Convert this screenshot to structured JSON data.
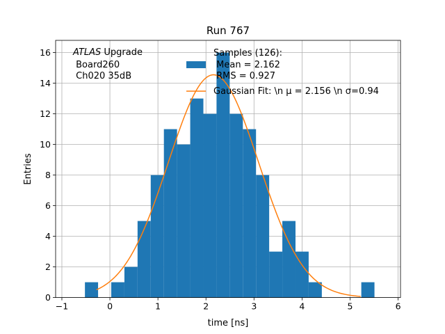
{
  "chart_data": {
    "type": "bar",
    "title": "Run 767",
    "xlabel": "time [ns]",
    "ylabel": "Entries",
    "xlim": [
      -1.13,
      6.05
    ],
    "ylim": [
      0,
      16.8
    ],
    "grid": true,
    "xticks": [
      -1,
      0,
      1,
      2,
      3,
      4,
      5,
      6
    ],
    "xtick_labels": [
      "−1",
      "0",
      "1",
      "2",
      "3",
      "4",
      "5",
      "6"
    ],
    "yticks": [
      0,
      2,
      4,
      6,
      8,
      10,
      12,
      14,
      16
    ],
    "ytick_labels": [
      "0",
      "2",
      "4",
      "6",
      "8",
      "10",
      "12",
      "14",
      "16"
    ],
    "bin_width": 0.274,
    "bins": [
      {
        "x0": -0.52,
        "value": 1
      },
      {
        "x0": -0.246,
        "value": 0
      },
      {
        "x0": 0.028,
        "value": 1
      },
      {
        "x0": 0.302,
        "value": 2
      },
      {
        "x0": 0.576,
        "value": 5
      },
      {
        "x0": 0.85,
        "value": 8
      },
      {
        "x0": 1.124,
        "value": 11
      },
      {
        "x0": 1.398,
        "value": 10
      },
      {
        "x0": 1.672,
        "value": 13
      },
      {
        "x0": 1.946,
        "value": 12
      },
      {
        "x0": 2.22,
        "value": 16
      },
      {
        "x0": 2.494,
        "value": 12
      },
      {
        "x0": 2.768,
        "value": 11
      },
      {
        "x0": 3.042,
        "value": 8
      },
      {
        "x0": 3.316,
        "value": 3
      },
      {
        "x0": 3.59,
        "value": 5
      },
      {
        "x0": 3.864,
        "value": 3
      },
      {
        "x0": 4.138,
        "value": 1
      },
      {
        "x0": 4.412,
        "value": 0
      },
      {
        "x0": 4.686,
        "value": 0
      },
      {
        "x0": 4.96,
        "value": 0
      },
      {
        "x0": 5.234,
        "value": 1
      }
    ],
    "fit": {
      "type": "gaussian",
      "amplitude": 14.55,
      "mu": 2.156,
      "sigma": 0.94,
      "x_range": [
        -0.28,
        5.22
      ]
    },
    "legend": {
      "placement": "top-right",
      "entries": [
        {
          "kind": "bar",
          "lines": [
            "Samples (126):",
            " Mean = 2.162",
            " RMS = 0.927"
          ]
        },
        {
          "kind": "line",
          "lines": [
            "Gaussian Fit: \\n μ = 2.156 \\n σ=0.94"
          ]
        }
      ]
    },
    "annotation": {
      "lines": [
        "ATLAS Upgrade",
        " Board260",
        " Ch020 35dB"
      ],
      "italic_prefix": "ATLAS"
    },
    "colors": {
      "bars": "#1f77b4",
      "fit_line": "#ff7f0e",
      "grid": "#b0b0b0",
      "axes": "#000000"
    }
  }
}
